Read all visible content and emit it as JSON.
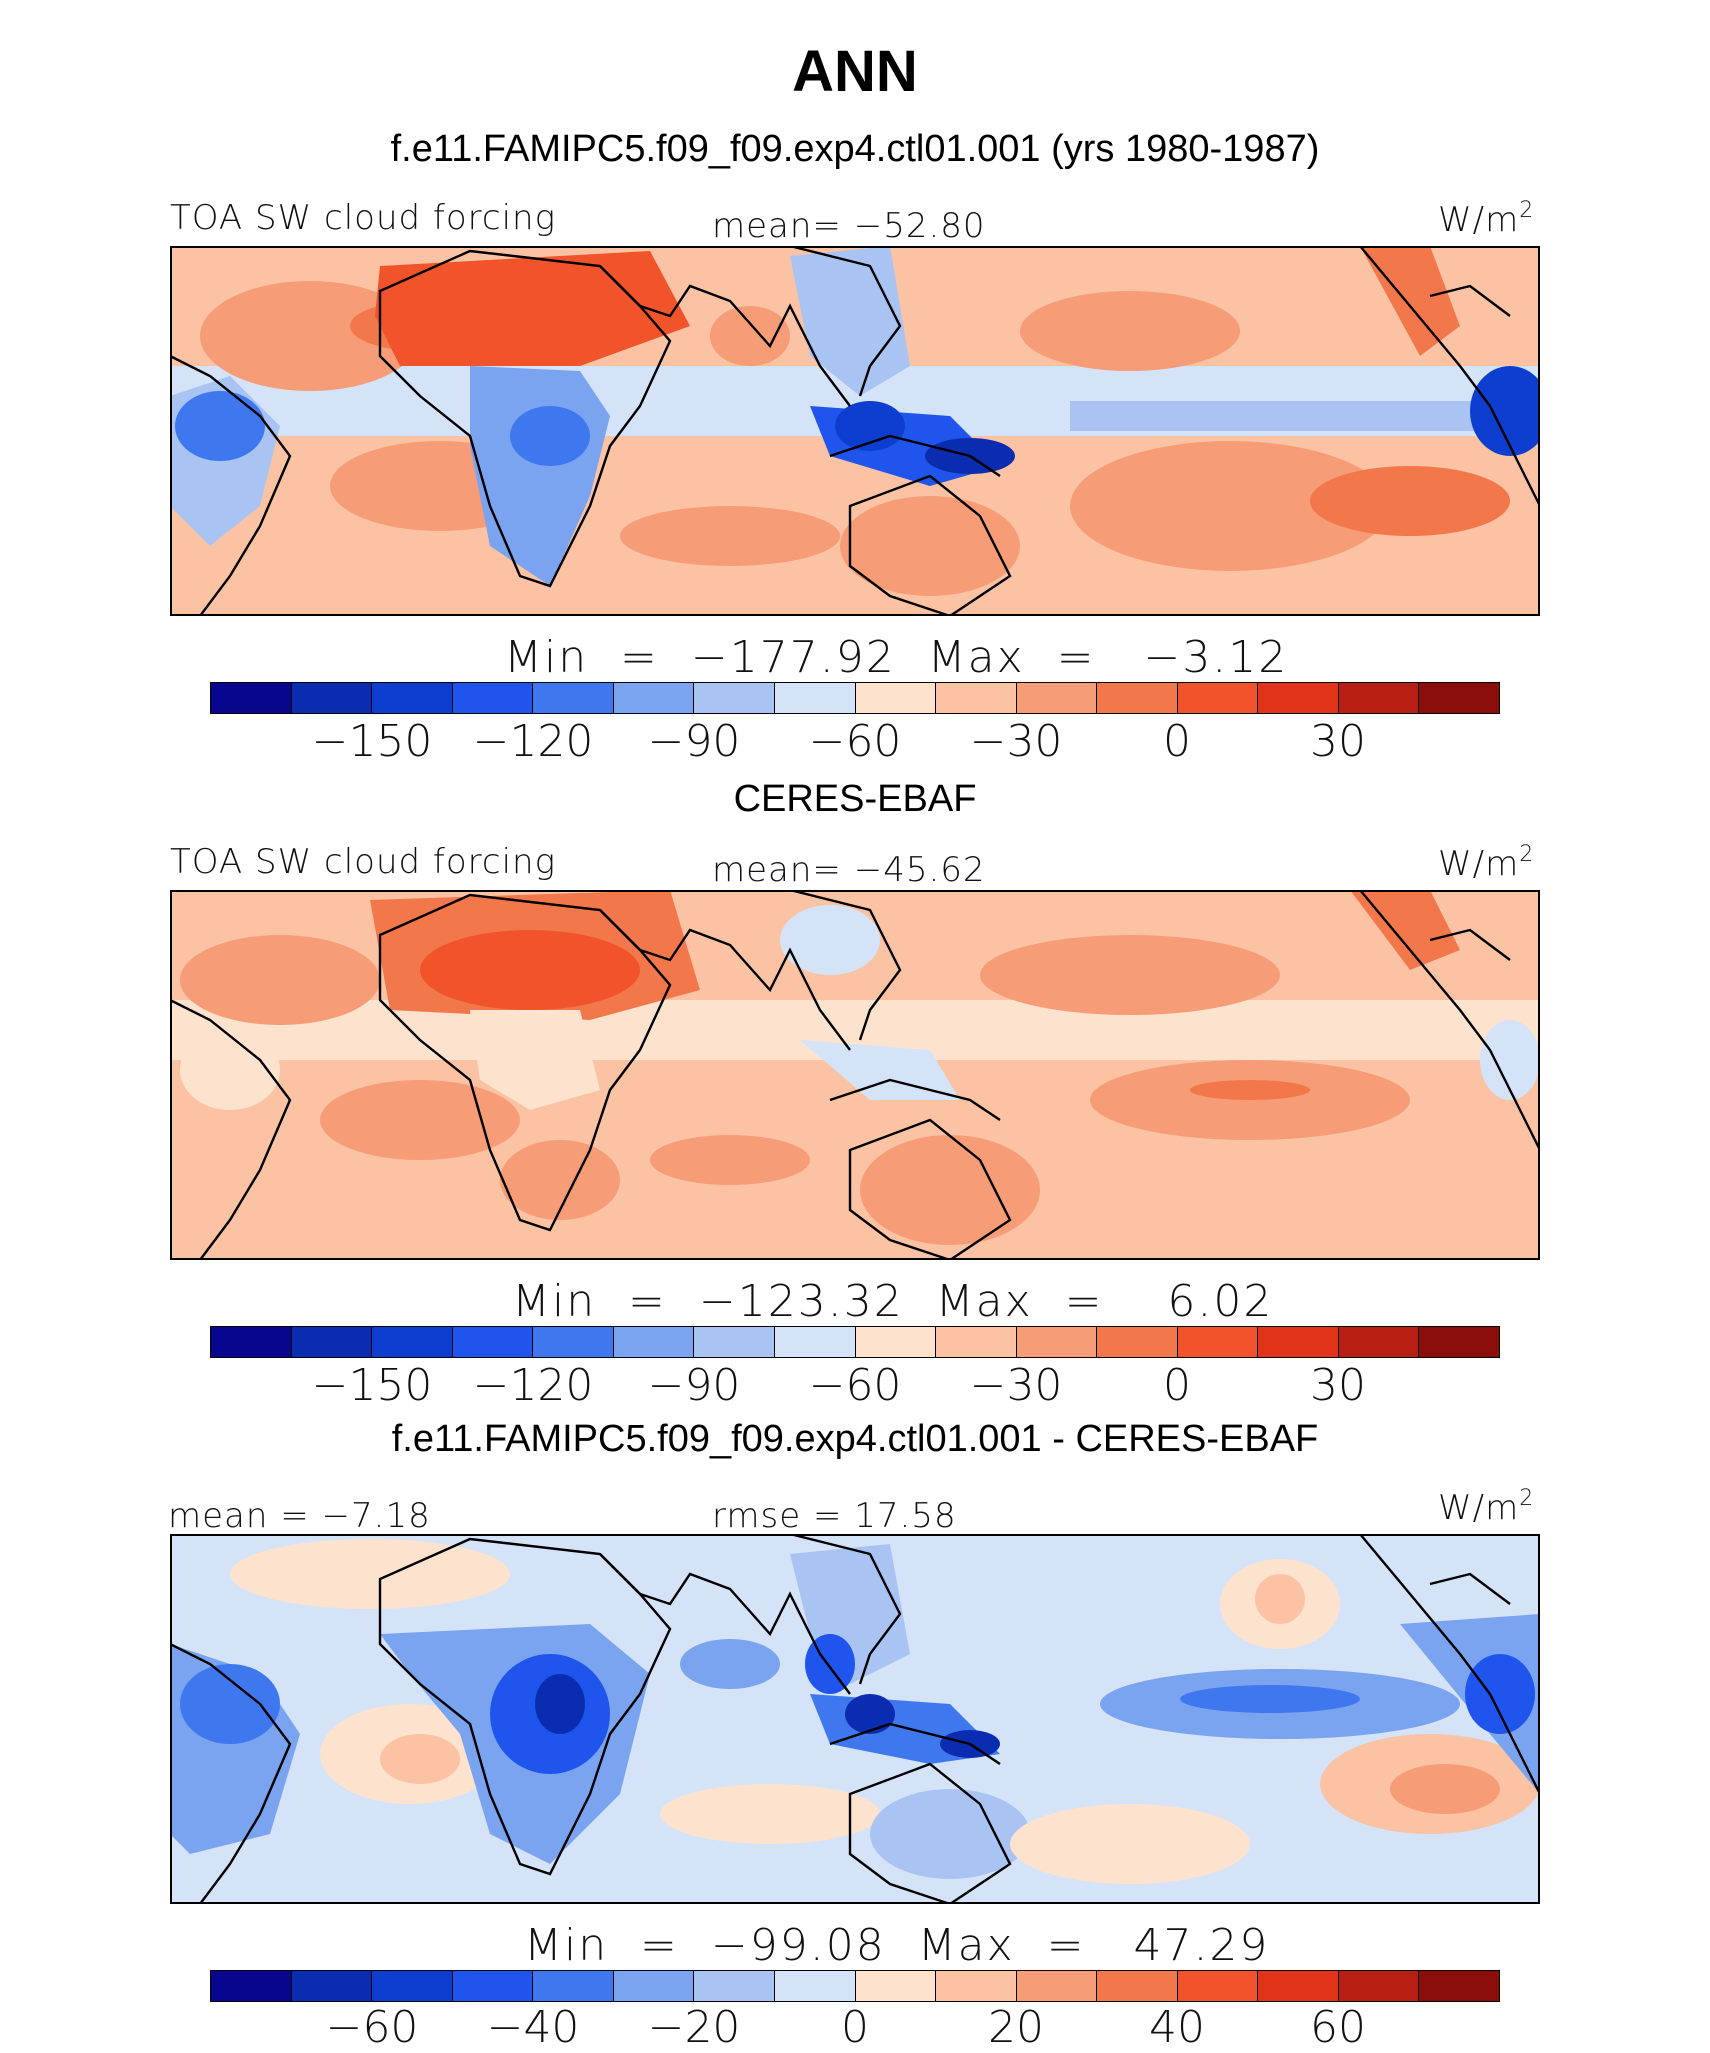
{
  "title": "ANN",
  "palette": [
    "#08068f",
    "#0a2cb0",
    "#0d3ed0",
    "#1f55ec",
    "#3f78ee",
    "#7aa3f0",
    "#a9c4f3",
    "#d4e3f8",
    "#fde3cd",
    "#fbc3a3",
    "#f69c77",
    "#f2784b",
    "#f1532a",
    "#e1331a",
    "#b81e14",
    "#8b0d0a"
  ],
  "land_color": "#000000",
  "panels": [
    {
      "heading": "f.e11.FAMIPC5.f09_f09.exp4.ctl01.001 (yrs 1980-1987)",
      "left_label": "TOA SW cloud forcing",
      "center_label": "mean= −52.80",
      "units": "W/m",
      "units_exp": "2",
      "minmax": "Min  =  −177.92  Max  =   −3.12",
      "ticks": [
        "−150",
        "−120",
        "−90",
        "−60",
        "−30",
        "0",
        "30"
      ],
      "background": "#fbc3a3"
    },
    {
      "heading": "CERES-EBAF",
      "left_label": "TOA SW cloud forcing",
      "center_label": "mean= −45.62",
      "units": "W/m",
      "units_exp": "2",
      "minmax": "Min  =  −123.32  Max  =    6.02",
      "ticks": [
        "−150",
        "−120",
        "−90",
        "−60",
        "−30",
        "0",
        "30"
      ],
      "background": "#fbc3a3"
    },
    {
      "heading": "f.e11.FAMIPC5.f09_f09.exp4.ctl01.001 - CERES-EBAF",
      "left_label": "mean  =  −7.18",
      "center_label": "rmse  =  17.58",
      "units": "W/m",
      "units_exp": "2",
      "minmax": "Min  =  −99.08  Max  =   47.29",
      "ticks": [
        "−60",
        "−40",
        "−20",
        "0",
        "20",
        "40",
        "60"
      ],
      "background": "#d4e3f8"
    }
  ]
}
